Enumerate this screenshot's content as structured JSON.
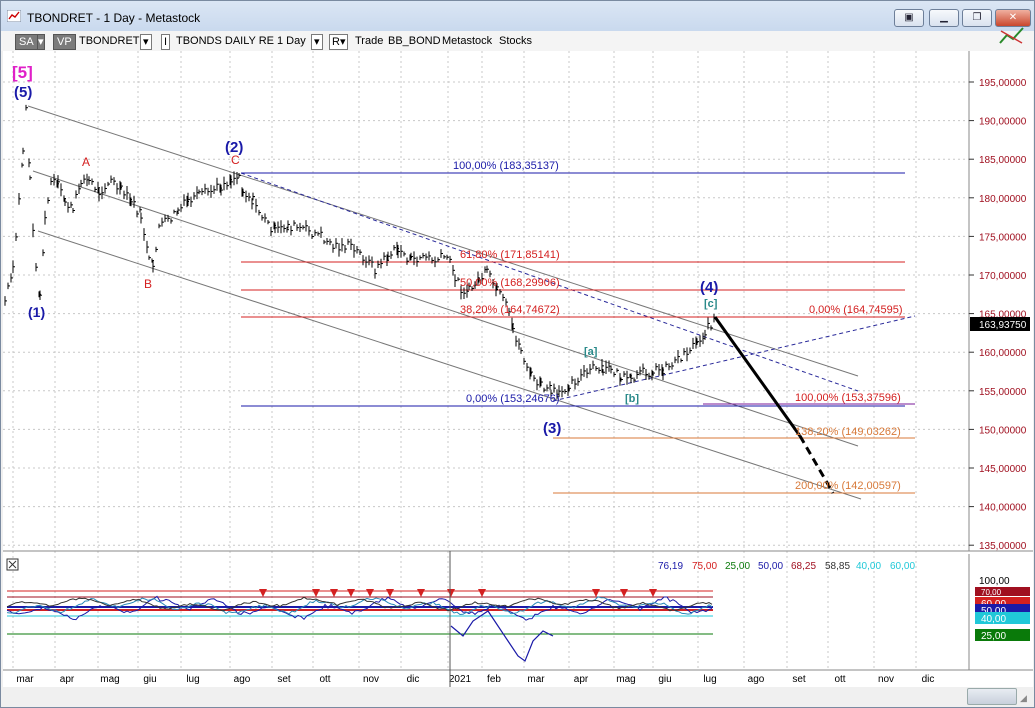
{
  "window": {
    "title": "TBONDRET - 1 Day - Metastock"
  },
  "toolbar": {
    "sa": "SA",
    "vp": "VP",
    "symbol": "TBONDRET",
    "name": "TBONDS DAILY RE",
    "period": "1 Day",
    "r": "R",
    "trade": "Trade",
    "bb": "BB_BOND",
    "source": "Metastock",
    "type": "Stocks"
  },
  "wave_labels": {
    "top": "[5]",
    "w5": "(5)",
    "w1": "(1)",
    "w2": "(2)",
    "w3": "(3)",
    "w4": "(4)",
    "a": "A",
    "b": "B",
    "c": "C",
    "sa": "[a]",
    "sb": "[b]",
    "sc": "[c]"
  },
  "fibs": {
    "f1": "100,00% (183,35137)",
    "f2": "61,80% (171,85141)",
    "f3": "50,00% (168,29906)",
    "f4": "38,20% (164,74672)",
    "f5": "0,00% (153,24676)",
    "f6": "0,00% (164,74595)",
    "f7": "100,00% (153,37596)",
    "f8": "138,20% (149,03262)",
    "f9": "200,00% (142,00597)"
  },
  "price_axis": [
    "195,00000",
    "190,00000",
    "185,00000",
    "180,00000",
    "175,00000",
    "170,00000",
    "165,00000",
    "160,00000",
    "155,00000",
    "150,00000",
    "145,00000",
    "140,00000",
    "135,00000"
  ],
  "last_price": "163,93750",
  "indicator": {
    "readouts": [
      "76,19",
      "75,00",
      "25,00",
      "50,00",
      "68,25",
      "58,85",
      "40,00",
      "60,00"
    ],
    "axis": [
      "100,00",
      "50,00",
      "25,00"
    ],
    "tags": [
      "60,00",
      "50,00",
      "40,00",
      "25,00"
    ],
    "partial_tag": "70,00"
  },
  "x_axis": [
    "mar",
    "apr",
    "mag",
    "giu",
    "lug",
    "ago",
    "set",
    "ott",
    "nov",
    "dic",
    "2021",
    "feb",
    "mar",
    "apr",
    "mag",
    "giu",
    "lug",
    "ago",
    "set",
    "ott",
    "nov",
    "dic"
  ],
  "colors": {
    "blue": "#1a1aa8",
    "red": "#d42020",
    "teal": "#2a8a8a",
    "orange": "#d87a3a",
    "magenta": "#e020c8",
    "darkred": "#a01020",
    "green": "#0a7a0a"
  }
}
